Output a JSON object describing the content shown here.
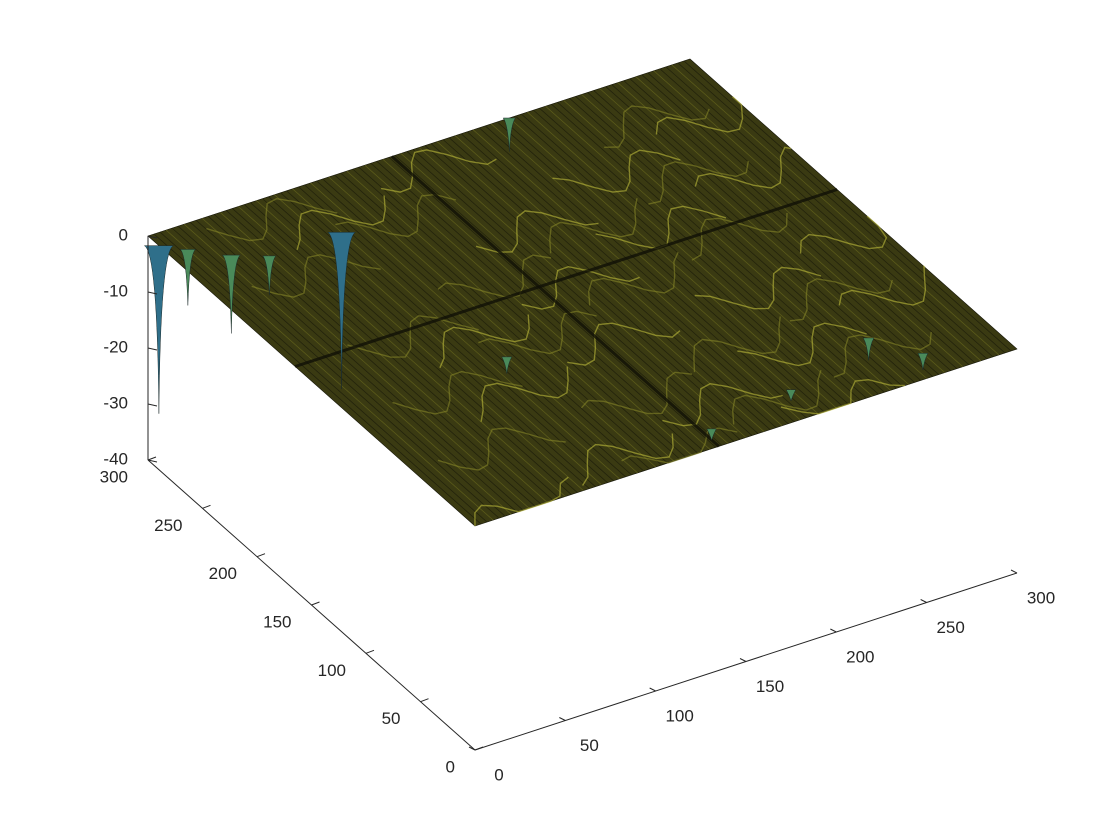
{
  "chart_data": {
    "type": "surface",
    "title": "",
    "xlabel": "",
    "ylabel": "",
    "zlabel": "",
    "xlim": [
      0,
      300
    ],
    "ylim": [
      0,
      300
    ],
    "zlim": [
      -40,
      0
    ],
    "grid": false,
    "xticks": [
      0,
      50,
      100,
      150,
      200,
      250,
      300
    ],
    "yticks": [
      0,
      50,
      100,
      150,
      200,
      250,
      300
    ],
    "zticks": [
      0,
      -10,
      -20,
      -30,
      -40
    ],
    "colormap": [
      "#440154",
      "#3b528b",
      "#21918c",
      "#5ec962",
      "#fde725"
    ],
    "surface_color": "#3a3a12",
    "surface_extent": {
      "x": [
        0,
        300
      ],
      "y": [
        0,
        300
      ]
    },
    "baseline_z": 0,
    "spikes": [
      {
        "x": 0,
        "y": 290,
        "z": -30
      },
      {
        "x": 10,
        "y": 280,
        "z": -10
      },
      {
        "x": 25,
        "y": 265,
        "z": -14
      },
      {
        "x": 40,
        "y": 255,
        "z": -7
      },
      {
        "x": 80,
        "y": 255,
        "z": -28
      },
      {
        "x": 200,
        "y": 300,
        "z": -6
      },
      {
        "x": 90,
        "y": 120,
        "z": -3
      },
      {
        "x": 245,
        "y": 45,
        "z": -4
      },
      {
        "x": 190,
        "y": 25,
        "z": -2
      },
      {
        "x": 140,
        "y": 15,
        "z": -2
      },
      {
        "x": 260,
        "y": 20,
        "z": -3
      }
    ]
  }
}
